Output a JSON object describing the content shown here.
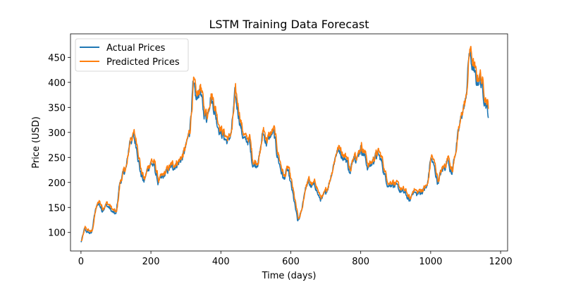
{
  "chart_data": {
    "type": "line",
    "title": "LSTM Training Data Forecast",
    "xlabel": "Time (days)",
    "ylabel": "Price (USD)",
    "xlim": [
      -30,
      1220
    ],
    "ylim": [
      63,
      497
    ],
    "xticks": [
      0,
      200,
      400,
      600,
      800,
      1000,
      1200
    ],
    "yticks": [
      100,
      150,
      200,
      250,
      300,
      350,
      400,
      450
    ],
    "grid": false,
    "legend_position": "top-left",
    "colors": {
      "actual": "#1f77b4",
      "predicted": "#ff7f0e"
    },
    "anchors": {
      "x": [
        0,
        10,
        20,
        30,
        40,
        50,
        60,
        70,
        80,
        90,
        100,
        110,
        120,
        130,
        140,
        150,
        160,
        170,
        180,
        190,
        200,
        210,
        220,
        230,
        240,
        250,
        260,
        270,
        280,
        290,
        300,
        310,
        320,
        330,
        340,
        350,
        360,
        370,
        380,
        390,
        400,
        410,
        420,
        430,
        440,
        450,
        460,
        470,
        480,
        490,
        500,
        510,
        520,
        530,
        540,
        550,
        560,
        570,
        580,
        590,
        600,
        610,
        620,
        630,
        640,
        650,
        660,
        670,
        680,
        690,
        700,
        710,
        720,
        730,
        740,
        750,
        760,
        770,
        780,
        790,
        800,
        810,
        820,
        830,
        840,
        850,
        860,
        870,
        880,
        890,
        900,
        910,
        920,
        930,
        940,
        950,
        960,
        970,
        980,
        990,
        1000,
        1010,
        1020,
        1030,
        1040,
        1050,
        1060,
        1070,
        1080,
        1090,
        1100,
        1110,
        1120,
        1130,
        1140,
        1150,
        1160,
        1165
      ],
      "y": [
        80,
        105,
        100,
        98,
        140,
        160,
        145,
        155,
        150,
        140,
        135,
        195,
        215,
        230,
        285,
        290,
        270,
        220,
        200,
        225,
        240,
        230,
        200,
        205,
        215,
        225,
        230,
        235,
        240,
        250,
        270,
        300,
        390,
        360,
        390,
        340,
        330,
        375,
        350,
        320,
        300,
        290,
        280,
        300,
        370,
        340,
        300,
        280,
        285,
        240,
        235,
        250,
        300,
        280,
        290,
        300,
        260,
        230,
        205,
        225,
        195,
        160,
        120,
        140,
        185,
        200,
        190,
        195,
        170,
        165,
        180,
        200,
        230,
        260,
        265,
        250,
        245,
        215,
        260,
        250,
        270,
        255,
        230,
        235,
        250,
        255,
        240,
        210,
        195,
        200,
        190,
        185,
        180,
        175,
        160,
        185,
        175,
        180,
        185,
        190,
        250,
        230,
        200,
        220,
        230,
        250,
        215,
        260,
        300,
        340,
        360,
        460,
        430,
        400,
        410,
        380,
        355,
        335
      ]
    },
    "series": [
      {
        "name": "Actual Prices",
        "color": "#1f77b4"
      },
      {
        "name": "Predicted Prices",
        "color": "#ff7f0e"
      }
    ]
  }
}
